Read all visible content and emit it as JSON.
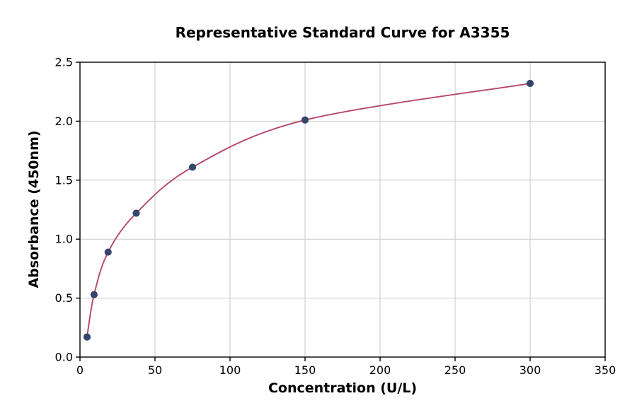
{
  "figure": {
    "background": "#ffffff"
  },
  "chart_data": {
    "type": "scatter",
    "title": "Representative Standard Curve for A3355",
    "xlabel": "Concentration (U/L)",
    "ylabel": "Absorbance (450nm)",
    "xlim": [
      0,
      350
    ],
    "ylim": [
      0,
      2.5
    ],
    "x_ticks": [
      0,
      50,
      100,
      150,
      200,
      250,
      300,
      350
    ],
    "y_ticks": [
      "0.0",
      "0.5",
      "1.0",
      "1.5",
      "2.0",
      "2.5"
    ],
    "grid": true,
    "legend_position": "none",
    "colors": {
      "grid": "#c9c9c9",
      "spine": "#000000",
      "curve": "#b5476b",
      "marker": "#35466b"
    },
    "series": [
      {
        "name": "standards",
        "x": [
          4.69,
          9.38,
          18.75,
          37.5,
          75,
          150,
          300
        ],
        "y": [
          0.17,
          0.53,
          0.89,
          1.22,
          1.61,
          2.01,
          2.32
        ]
      }
    ],
    "fit_curve": {
      "style": "smooth-saturation-curve",
      "through_points": true
    }
  }
}
